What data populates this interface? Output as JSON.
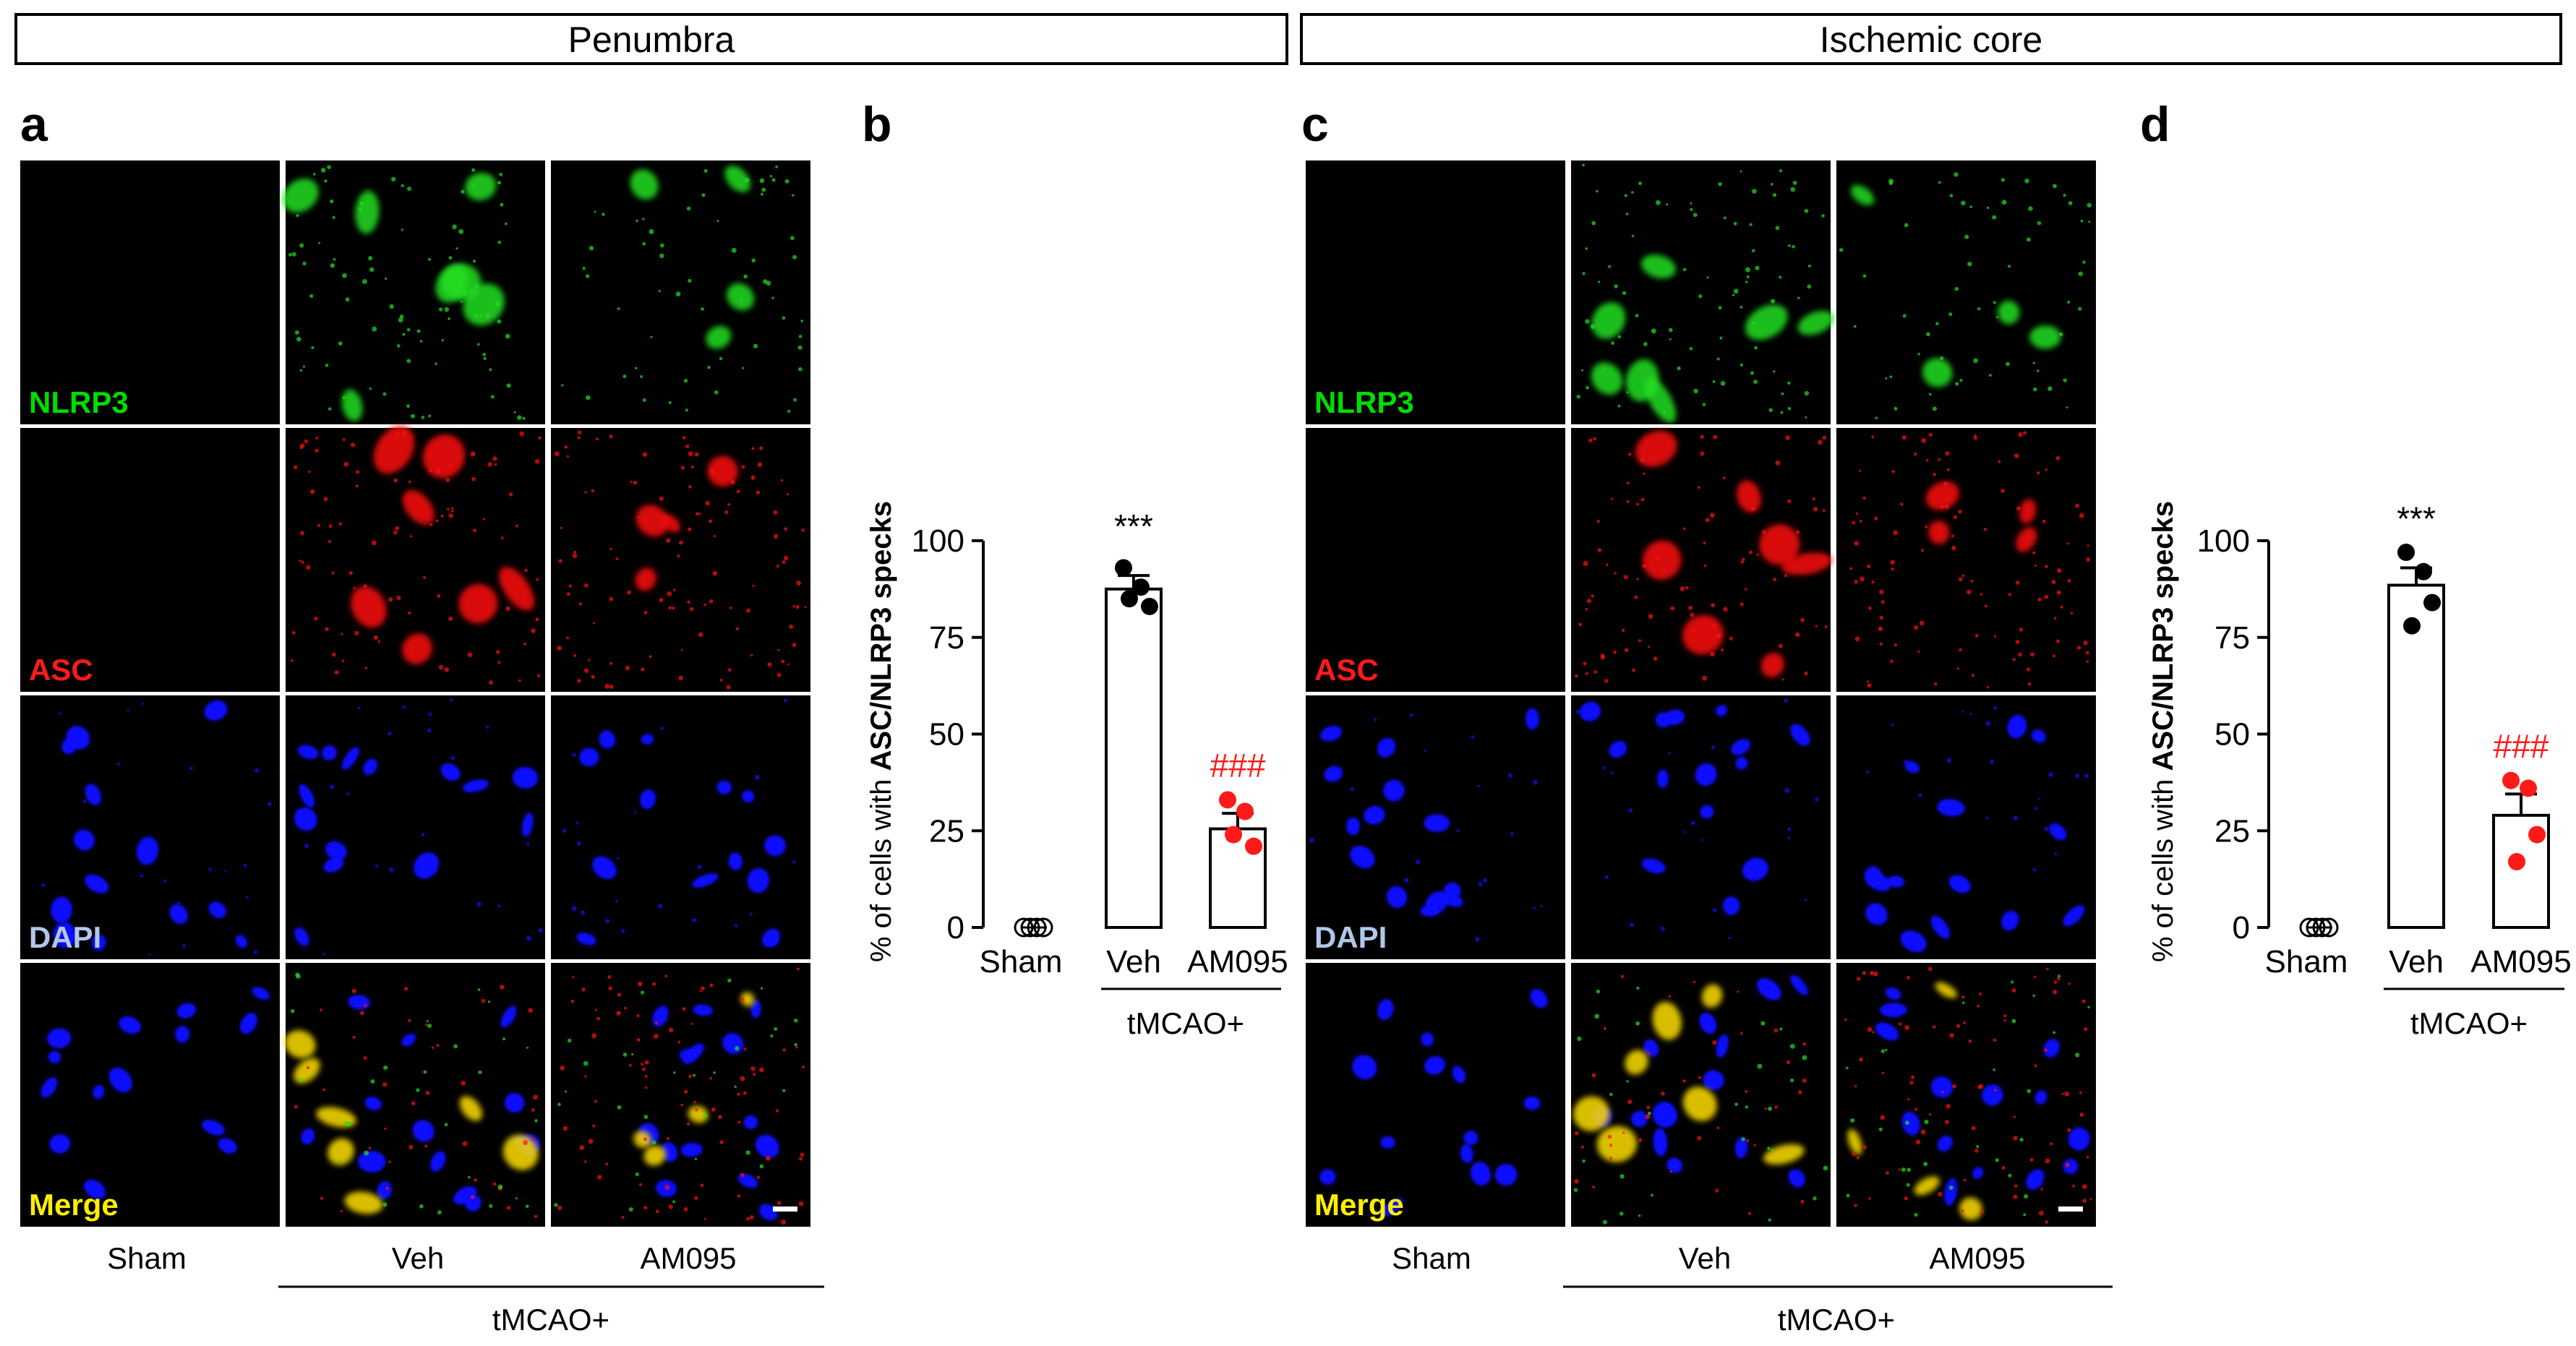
{
  "regions": [
    {
      "title": "Penumbra"
    },
    {
      "title": "Ischemic core"
    }
  ],
  "panels": {
    "a": "a",
    "b": "b",
    "c": "c",
    "d": "d"
  },
  "micrographs": {
    "channels": [
      {
        "label": "NLRP3",
        "color": "#00dd00"
      },
      {
        "label": "ASC",
        "color": "#ff1a1a"
      },
      {
        "label": "DAPI",
        "color": "#b0c8e8"
      },
      {
        "label": "Merge",
        "color": "#ffee00"
      }
    ],
    "columns": [
      "Sham",
      "Veh",
      "AM095"
    ],
    "group_label": "tMCAO+"
  },
  "colors": {
    "veh_points": "#000000",
    "am095_points": "#ff1a1a",
    "sig_veh": "#000000",
    "sig_am095": "#ff1a1a"
  },
  "chart_data": [
    {
      "panel": "b",
      "type": "bar",
      "categories": [
        "Sham",
        "Veh",
        "AM095"
      ],
      "values": [
        0,
        87.5,
        25.5
      ],
      "sem": [
        0,
        3.5,
        4.0
      ],
      "points": [
        [
          0,
          0,
          0,
          0
        ],
        [
          93,
          88,
          83,
          85
        ],
        [
          33,
          30,
          21,
          24
        ]
      ],
      "ylabel_prefix": "% of cells with ",
      "ylabel_bold": "ASC/NLRP3 specks",
      "ylim": [
        0,
        100
      ],
      "yticks": [
        "0",
        "25",
        "50",
        "75",
        "100"
      ],
      "group_label": "tMCAO+",
      "significance": [
        "",
        "***",
        "###"
      ]
    },
    {
      "panel": "d",
      "type": "bar",
      "categories": [
        "Sham",
        "Veh",
        "AM095"
      ],
      "values": [
        0,
        88.5,
        29.0
      ],
      "sem": [
        0,
        4.5,
        5.5
      ],
      "points": [
        [
          0,
          0,
          0,
          0
        ],
        [
          97,
          92,
          84,
          78
        ],
        [
          38,
          36,
          24,
          17
        ]
      ],
      "ylabel_prefix": "% of cells with ",
      "ylabel_bold": "ASC/NLRP3 specks",
      "ylim": [
        0,
        100
      ],
      "yticks": [
        "0",
        "25",
        "50",
        "75",
        "100"
      ],
      "group_label": "tMCAO+",
      "significance": [
        "",
        "***",
        "###"
      ]
    }
  ]
}
